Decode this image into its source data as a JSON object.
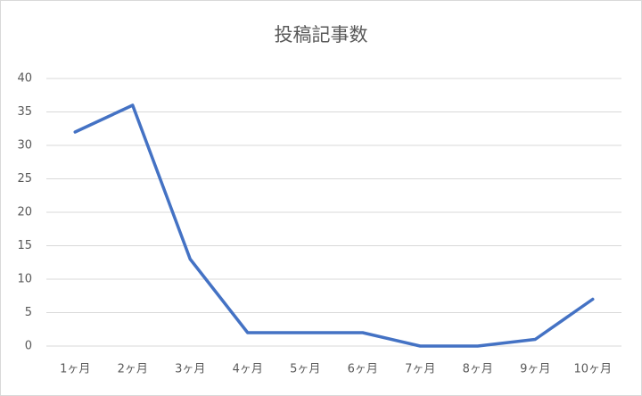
{
  "chart_data": {
    "type": "line",
    "title": "投稿記事数",
    "categories": [
      "1ヶ月",
      "2ヶ月",
      "3ヶ月",
      "4ヶ月",
      "5ヶ月",
      "6ヶ月",
      "7ヶ月",
      "8ヶ月",
      "9ヶ月",
      "10ヶ月"
    ],
    "values": [
      32,
      36,
      13,
      2,
      2,
      2,
      0,
      0,
      1,
      7
    ],
    "color": "#4472c4",
    "ylim": [
      0,
      40
    ],
    "yticks": [
      0,
      5,
      10,
      15,
      20,
      25,
      30,
      35,
      40
    ],
    "grid": true
  }
}
